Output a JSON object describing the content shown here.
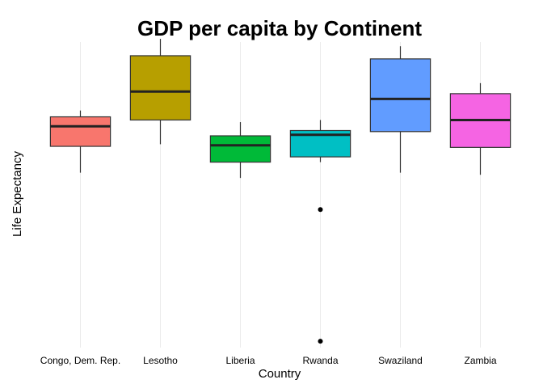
{
  "chart_data": {
    "type": "boxplot",
    "title": "GDP per capita by Continent",
    "xlabel": "Country",
    "ylabel": "Life Expectancy",
    "ylim": [
      23,
      52
    ],
    "grid": "vertical-only",
    "legend": "none",
    "y_tick_labels_shown": false,
    "categories": [
      "Congo, Dem. Rep.",
      "Lesotho",
      "Liberia",
      "Rwanda",
      "Swaziland",
      "Zambia"
    ],
    "boxes": [
      {
        "category": "Congo, Dem. Rep.",
        "whisker_low": 39.6,
        "q1": 42.1,
        "median": 44.0,
        "q3": 44.9,
        "whisker_high": 45.5,
        "outliers": [],
        "color": "#F8766D"
      },
      {
        "category": "Lesotho",
        "whisker_low": 42.3,
        "q1": 44.6,
        "median": 47.3,
        "q3": 50.7,
        "whisker_high": 52.3,
        "outliers": [],
        "color": "#B79F00"
      },
      {
        "category": "Liberia",
        "whisker_low": 39.1,
        "q1": 40.6,
        "median": 42.2,
        "q3": 43.1,
        "whisker_high": 44.4,
        "outliers": [],
        "color": "#00BA38"
      },
      {
        "category": "Rwanda",
        "whisker_low": 40.6,
        "q1": 41.1,
        "median": 43.2,
        "q3": 43.6,
        "whisker_high": 44.6,
        "outliers": [
          23.6,
          36.1
        ],
        "color": "#00BFC4"
      },
      {
        "category": "Swaziland",
        "whisker_low": 39.6,
        "q1": 43.5,
        "median": 46.6,
        "q3": 50.4,
        "whisker_high": 51.6,
        "outliers": [],
        "color": "#619CFF"
      },
      {
        "category": "Zambia",
        "whisker_low": 39.4,
        "q1": 42.0,
        "median": 44.6,
        "q3": 47.1,
        "whisker_high": 48.1,
        "outliers": [],
        "color": "#F564E3"
      }
    ]
  }
}
